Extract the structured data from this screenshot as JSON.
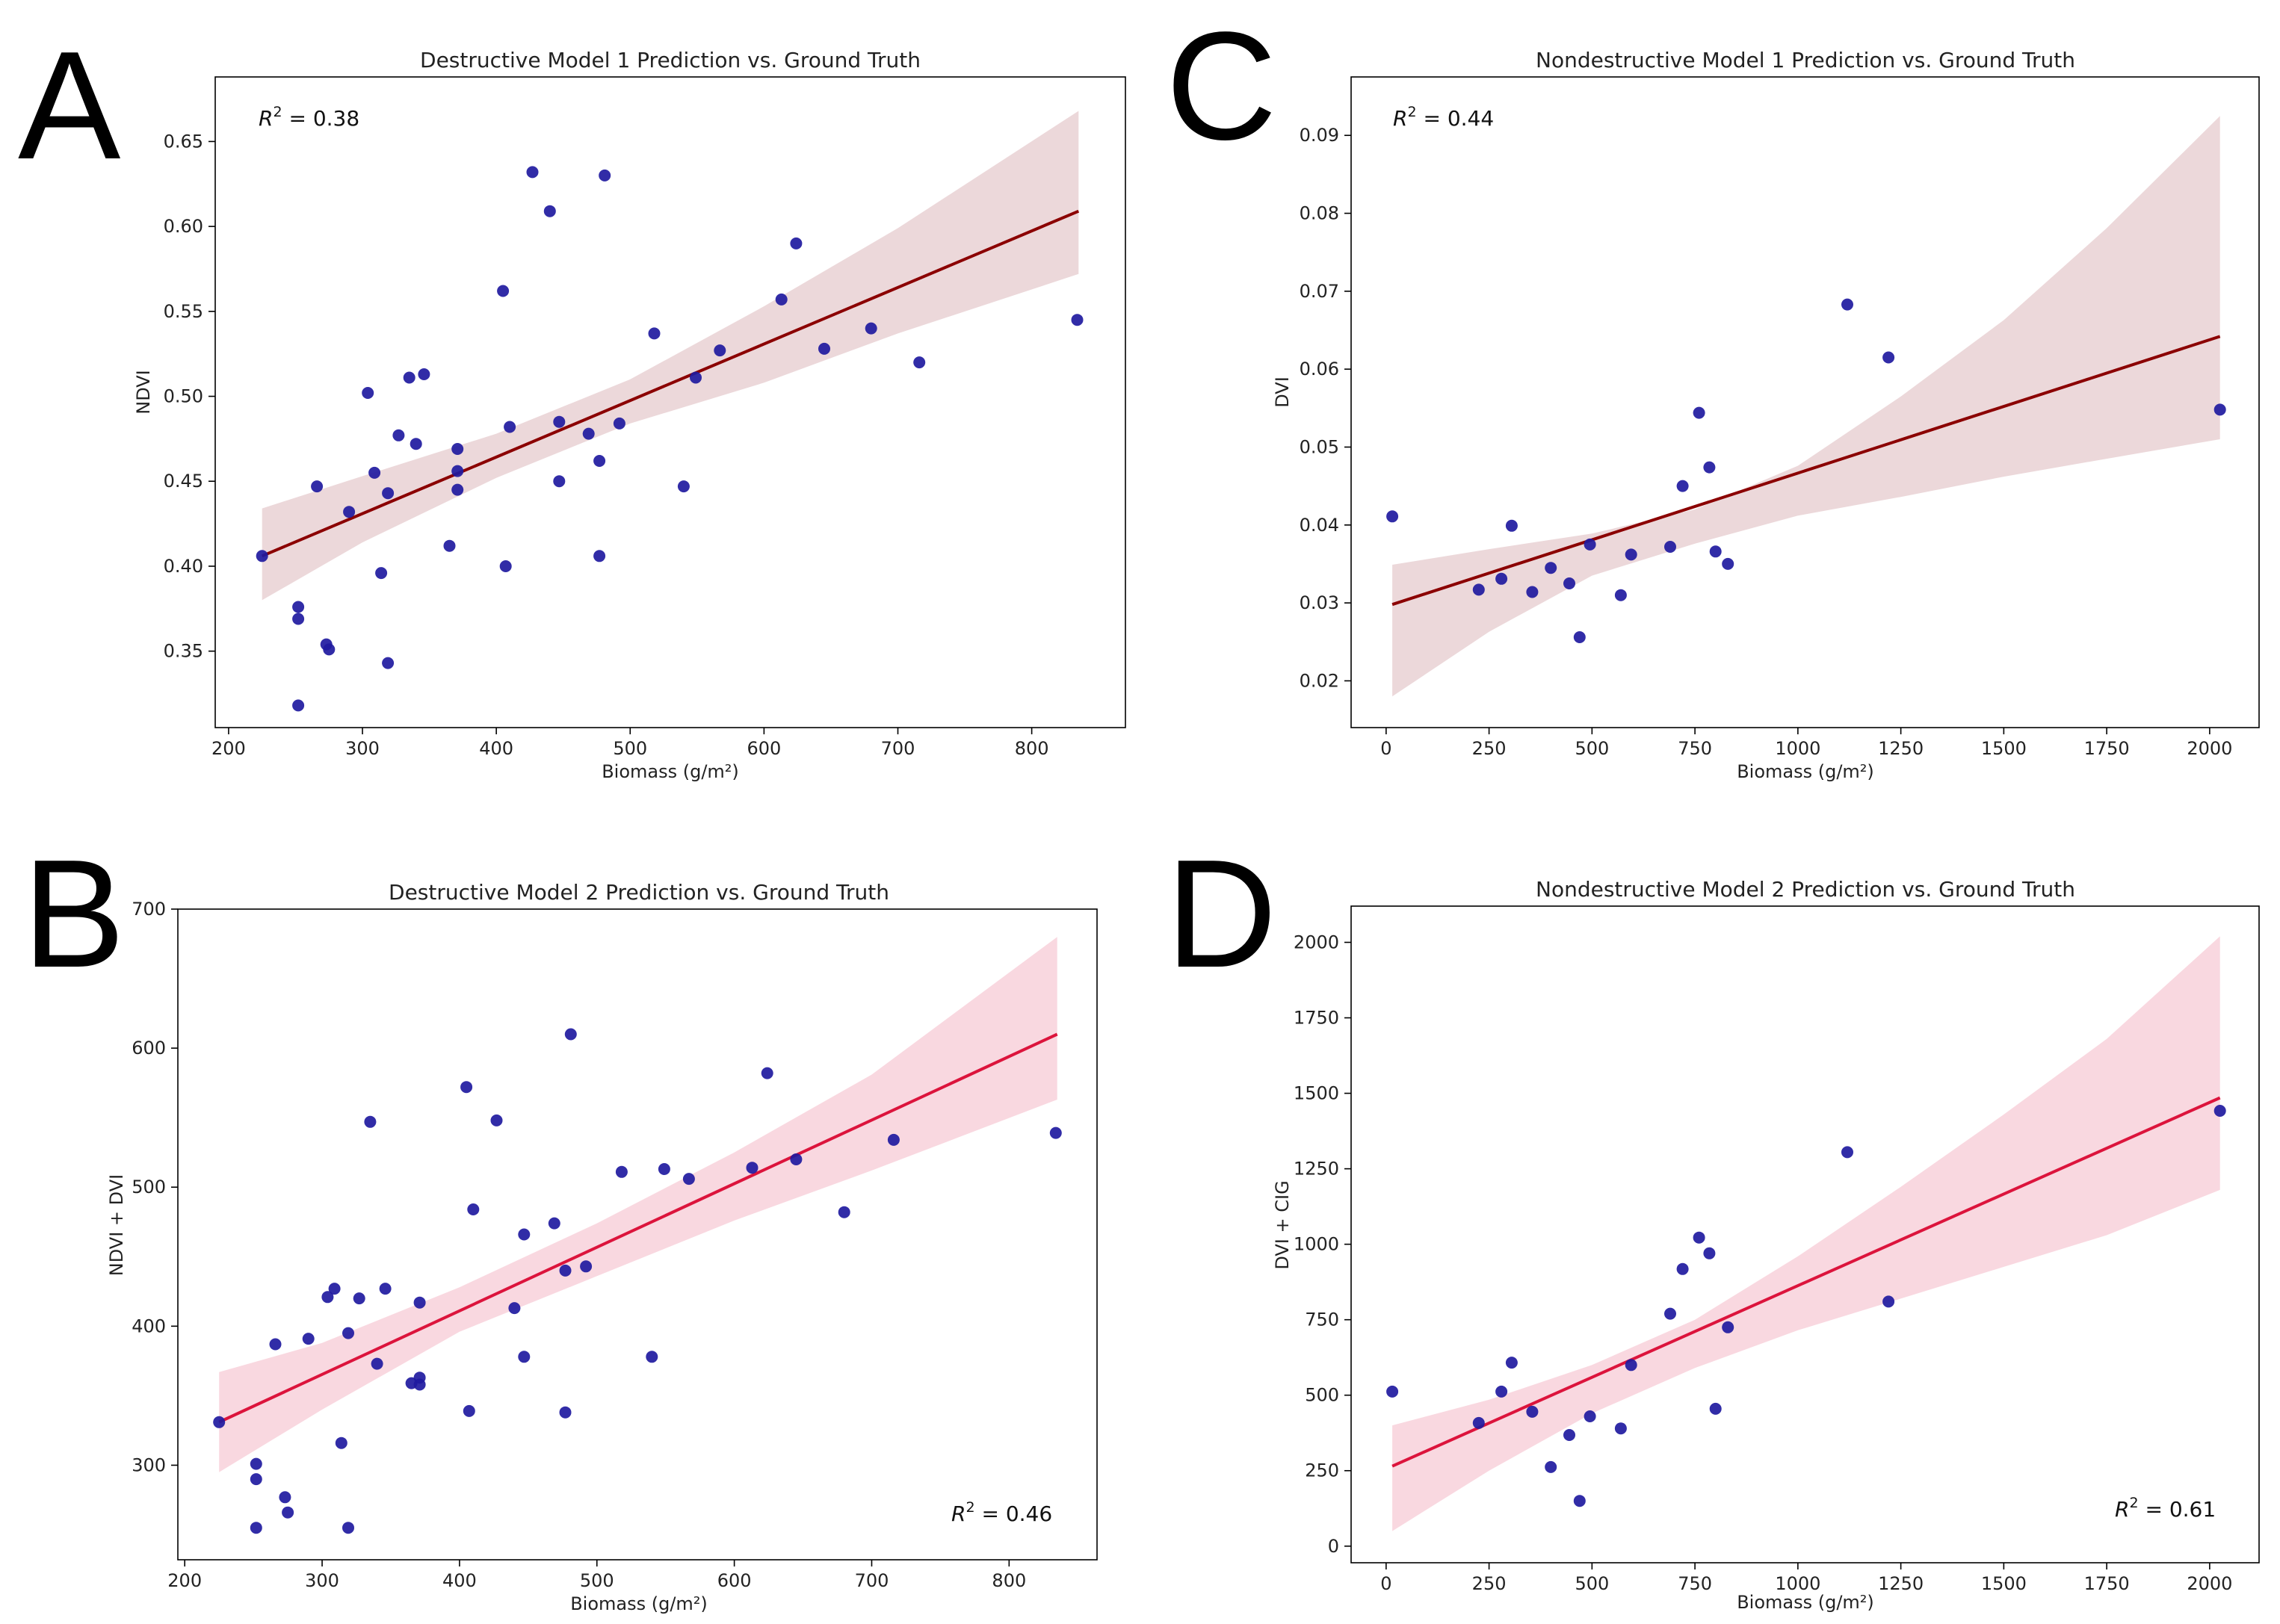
{
  "chart_data": [
    {
      "type": "scatter",
      "panel": "A",
      "title": "Destructive Model 1 Prediction vs. Ground Truth",
      "xlabel": "Biomass (g/m²)",
      "ylabel": "NDVI",
      "annotation": {
        "label": "R² = 0.38",
        "r2": "0.38",
        "position": "top-left"
      },
      "xlim": [
        190,
        870
      ],
      "ylim": [
        0.305,
        0.688
      ],
      "xticks": [
        200,
        300,
        400,
        500,
        600,
        700,
        800
      ],
      "yticks": [
        0.35,
        0.4,
        0.45,
        0.5,
        0.55,
        0.6,
        0.65
      ],
      "ytick_decimals": 2,
      "line_color": "#8b0000",
      "band_color": "#dcb8bb",
      "point_color": "#1f1aa0",
      "regression": {
        "x": [
          225,
          835
        ],
        "y": [
          0.406,
          0.609
        ]
      },
      "confidence_band": {
        "x": [
          225,
          300,
          400,
          500,
          600,
          700,
          835
        ],
        "upper": [
          0.434,
          0.453,
          0.478,
          0.51,
          0.553,
          0.599,
          0.668
        ],
        "lower": [
          0.38,
          0.414,
          0.452,
          0.484,
          0.508,
          0.537,
          0.572
        ]
      },
      "points": [
        {
          "x": 225,
          "y": 0.406
        },
        {
          "x": 252,
          "y": 0.376
        },
        {
          "x": 252,
          "y": 0.369
        },
        {
          "x": 252,
          "y": 0.318
        },
        {
          "x": 266,
          "y": 0.447
        },
        {
          "x": 273,
          "y": 0.354
        },
        {
          "x": 275,
          "y": 0.351
        },
        {
          "x": 290,
          "y": 0.432
        },
        {
          "x": 304,
          "y": 0.502
        },
        {
          "x": 309,
          "y": 0.455
        },
        {
          "x": 314,
          "y": 0.396
        },
        {
          "x": 319,
          "y": 0.443
        },
        {
          "x": 319,
          "y": 0.343
        },
        {
          "x": 327,
          "y": 0.477
        },
        {
          "x": 335,
          "y": 0.511
        },
        {
          "x": 340,
          "y": 0.472
        },
        {
          "x": 346,
          "y": 0.513
        },
        {
          "x": 365,
          "y": 0.412
        },
        {
          "x": 371,
          "y": 0.469
        },
        {
          "x": 371,
          "y": 0.456
        },
        {
          "x": 371,
          "y": 0.445
        },
        {
          "x": 405,
          "y": 0.562
        },
        {
          "x": 407,
          "y": 0.4
        },
        {
          "x": 410,
          "y": 0.482
        },
        {
          "x": 427,
          "y": 0.632
        },
        {
          "x": 440,
          "y": 0.609
        },
        {
          "x": 447,
          "y": 0.485
        },
        {
          "x": 447,
          "y": 0.45
        },
        {
          "x": 469,
          "y": 0.478
        },
        {
          "x": 477,
          "y": 0.462
        },
        {
          "x": 477,
          "y": 0.406
        },
        {
          "x": 481,
          "y": 0.63
        },
        {
          "x": 492,
          "y": 0.484
        },
        {
          "x": 518,
          "y": 0.537
        },
        {
          "x": 540,
          "y": 0.447
        },
        {
          "x": 549,
          "y": 0.511
        },
        {
          "x": 567,
          "y": 0.527
        },
        {
          "x": 613,
          "y": 0.557
        },
        {
          "x": 624,
          "y": 0.59
        },
        {
          "x": 645,
          "y": 0.528
        },
        {
          "x": 680,
          "y": 0.54
        },
        {
          "x": 716,
          "y": 0.52
        },
        {
          "x": 834,
          "y": 0.545
        }
      ]
    },
    {
      "type": "scatter",
      "panel": "B",
      "title": "Destructive Model 2 Prediction vs. Ground Truth",
      "xlabel": "Biomass (g/m²)",
      "ylabel": "NDVI + DVI",
      "annotation": {
        "label": "R² = 0.46",
        "r2": "0.46",
        "position": "bottom-right"
      },
      "xlim": [
        195,
        864
      ],
      "ylim": [
        232,
        700
      ],
      "xticks": [
        200,
        300,
        400,
        500,
        600,
        700,
        800
      ],
      "yticks": [
        300,
        400,
        500,
        600,
        700
      ],
      "ytick_decimals": 0,
      "line_color": "#dc143c",
      "band_color": "#f4b8c6",
      "point_color": "#1f1aa0",
      "regression": {
        "x": [
          225,
          835
        ],
        "y": [
          331,
          610
        ]
      },
      "confidence_band": {
        "x": [
          225,
          300,
          400,
          500,
          600,
          700,
          835
        ],
        "upper": [
          367,
          388,
          428,
          474,
          525,
          581,
          680
        ],
        "lower": [
          295,
          340,
          396,
          436,
          476,
          512,
          563
        ]
      },
      "points": [
        {
          "x": 225,
          "y": 331
        },
        {
          "x": 252,
          "y": 301
        },
        {
          "x": 252,
          "y": 290
        },
        {
          "x": 252,
          "y": 255
        },
        {
          "x": 266,
          "y": 387
        },
        {
          "x": 273,
          "y": 277
        },
        {
          "x": 275,
          "y": 266
        },
        {
          "x": 290,
          "y": 391
        },
        {
          "x": 304,
          "y": 421
        },
        {
          "x": 309,
          "y": 427
        },
        {
          "x": 314,
          "y": 316
        },
        {
          "x": 319,
          "y": 395
        },
        {
          "x": 319,
          "y": 255
        },
        {
          "x": 327,
          "y": 420
        },
        {
          "x": 335,
          "y": 547
        },
        {
          "x": 340,
          "y": 373
        },
        {
          "x": 346,
          "y": 427
        },
        {
          "x": 365,
          "y": 359
        },
        {
          "x": 371,
          "y": 417
        },
        {
          "x": 371,
          "y": 363
        },
        {
          "x": 371,
          "y": 358
        },
        {
          "x": 405,
          "y": 572
        },
        {
          "x": 407,
          "y": 339
        },
        {
          "x": 410,
          "y": 484
        },
        {
          "x": 427,
          "y": 548
        },
        {
          "x": 440,
          "y": 413
        },
        {
          "x": 447,
          "y": 466
        },
        {
          "x": 447,
          "y": 378
        },
        {
          "x": 469,
          "y": 474
        },
        {
          "x": 477,
          "y": 440
        },
        {
          "x": 477,
          "y": 338
        },
        {
          "x": 481,
          "y": 610
        },
        {
          "x": 492,
          "y": 443
        },
        {
          "x": 518,
          "y": 511
        },
        {
          "x": 540,
          "y": 378
        },
        {
          "x": 549,
          "y": 513
        },
        {
          "x": 567,
          "y": 506
        },
        {
          "x": 613,
          "y": 514
        },
        {
          "x": 624,
          "y": 582
        },
        {
          "x": 645,
          "y": 520
        },
        {
          "x": 680,
          "y": 482
        },
        {
          "x": 716,
          "y": 534
        },
        {
          "x": 834,
          "y": 539
        }
      ]
    },
    {
      "type": "scatter",
      "panel": "C",
      "title": "Nondestructive Model 1 Prediction vs. Ground Truth",
      "xlabel": "Biomass (g/m²)",
      "ylabel": "DVI",
      "annotation": {
        "label": "R² = 0.44",
        "r2": "0.44",
        "position": "top-left"
      },
      "xlim": [
        -85,
        2120
      ],
      "ylim": [
        0.014,
        0.0975
      ],
      "xticks": [
        0,
        250,
        500,
        750,
        1000,
        1250,
        1500,
        1750,
        2000
      ],
      "yticks": [
        0.02,
        0.03,
        0.04,
        0.05,
        0.06,
        0.07,
        0.08,
        0.09
      ],
      "ytick_decimals": 2,
      "line_color": "#8b0000",
      "band_color": "#dcb8bb",
      "point_color": "#1f1aa0",
      "regression": {
        "x": [
          15,
          2025
        ],
        "y": [
          0.0298,
          0.0642
        ]
      },
      "confidence_band": {
        "x": [
          15,
          250,
          500,
          750,
          1000,
          1250,
          1500,
          1750,
          2025
        ],
        "upper": [
          0.0349,
          0.0369,
          0.0389,
          0.042,
          0.0476,
          0.0565,
          0.0663,
          0.0781,
          0.0925
        ],
        "lower": [
          0.018,
          0.0263,
          0.0335,
          0.0376,
          0.0412,
          0.0436,
          0.0462,
          0.0485,
          0.051
        ]
      },
      "points": [
        {
          "x": 15,
          "y": 0.0411
        },
        {
          "x": 225,
          "y": 0.0317
        },
        {
          "x": 280,
          "y": 0.0331
        },
        {
          "x": 305,
          "y": 0.0399
        },
        {
          "x": 355,
          "y": 0.0314
        },
        {
          "x": 400,
          "y": 0.0345
        },
        {
          "x": 445,
          "y": 0.0325
        },
        {
          "x": 470,
          "y": 0.0256
        },
        {
          "x": 495,
          "y": 0.0375
        },
        {
          "x": 570,
          "y": 0.031
        },
        {
          "x": 595,
          "y": 0.0362
        },
        {
          "x": 690,
          "y": 0.0372
        },
        {
          "x": 720,
          "y": 0.045
        },
        {
          "x": 760,
          "y": 0.0544
        },
        {
          "x": 785,
          "y": 0.0474
        },
        {
          "x": 800,
          "y": 0.0366
        },
        {
          "x": 830,
          "y": 0.035
        },
        {
          "x": 1120,
          "y": 0.0683
        },
        {
          "x": 1220,
          "y": 0.0615
        },
        {
          "x": 2025,
          "y": 0.0548
        }
      ]
    },
    {
      "type": "scatter",
      "panel": "D",
      "title": "Nondestructive Model 2 Prediction vs. Ground Truth",
      "xlabel": "Biomass (g/m²)",
      "ylabel": "DVI + CIG",
      "annotation": {
        "label": "R² = 0.61",
        "r2": "0.61",
        "position": "bottom-right"
      },
      "xlim": [
        -85,
        2120
      ],
      "ylim": [
        -55,
        2120
      ],
      "xticks": [
        0,
        250,
        500,
        750,
        1000,
        1250,
        1500,
        1750,
        2000
      ],
      "yticks": [
        0,
        250,
        500,
        750,
        1000,
        1250,
        1500,
        1750,
        2000
      ],
      "ytick_decimals": 0,
      "line_color": "#dc143c",
      "band_color": "#f4b8c6",
      "point_color": "#1f1aa0",
      "regression": {
        "x": [
          15,
          2025
        ],
        "y": [
          265,
          1485
        ]
      },
      "confidence_band": {
        "x": [
          15,
          250,
          500,
          750,
          1000,
          1250,
          1500,
          1750,
          2025
        ],
        "upper": [
          400,
          485,
          600,
          750,
          960,
          1190,
          1430,
          1680,
          2020
        ],
        "lower": [
          50,
          250,
          440,
          590,
          715,
          820,
          925,
          1030,
          1180
        ]
      },
      "points": [
        {
          "x": 15,
          "y": 512
        },
        {
          "x": 225,
          "y": 408
        },
        {
          "x": 280,
          "y": 512
        },
        {
          "x": 305,
          "y": 608
        },
        {
          "x": 355,
          "y": 445
        },
        {
          "x": 400,
          "y": 262
        },
        {
          "x": 445,
          "y": 368
        },
        {
          "x": 470,
          "y": 150
        },
        {
          "x": 495,
          "y": 430
        },
        {
          "x": 570,
          "y": 390
        },
        {
          "x": 595,
          "y": 600
        },
        {
          "x": 690,
          "y": 770
        },
        {
          "x": 720,
          "y": 918
        },
        {
          "x": 760,
          "y": 1022
        },
        {
          "x": 785,
          "y": 970
        },
        {
          "x": 800,
          "y": 455
        },
        {
          "x": 830,
          "y": 725
        },
        {
          "x": 1120,
          "y": 1305
        },
        {
          "x": 1220,
          "y": 810
        },
        {
          "x": 2025,
          "y": 1442
        }
      ]
    }
  ]
}
